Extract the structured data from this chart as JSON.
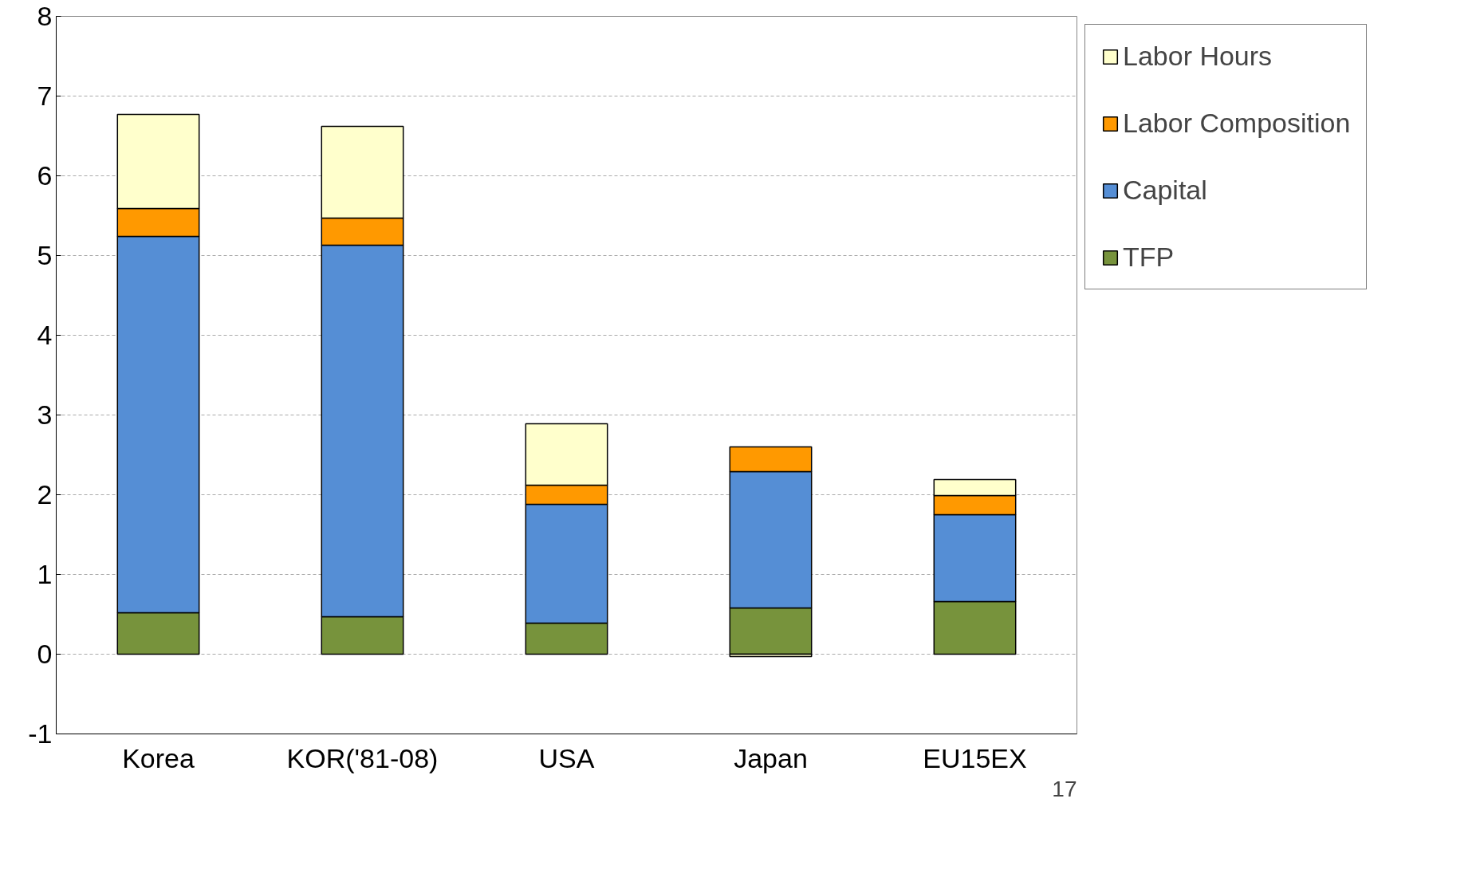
{
  "chart_data": {
    "type": "bar",
    "stacked": true,
    "categories": [
      "Korea",
      "KOR('81-08)",
      "USA",
      "Japan",
      "EU15EX"
    ],
    "series": [
      {
        "name": "TFP",
        "color": "#77933c",
        "values": [
          0.52,
          0.47,
          0.39,
          0.58,
          0.66
        ]
      },
      {
        "name": "Capital",
        "color": "#558ed5",
        "values": [
          4.72,
          4.66,
          1.49,
          1.71,
          1.09
        ]
      },
      {
        "name": "Labor Composition",
        "color": "#ff9900",
        "values": [
          0.35,
          0.34,
          0.24,
          0.31,
          0.24
        ]
      },
      {
        "name": "Labor Hours",
        "color": "#ffffcc",
        "values": [
          1.18,
          1.15,
          0.77,
          -0.03,
          0.2
        ]
      }
    ],
    "ylim": [
      -1,
      8
    ],
    "yticks": [
      -1,
      0,
      1,
      2,
      3,
      4,
      5,
      6,
      7,
      8
    ],
    "grid": "y",
    "legend": "right",
    "annotations": [
      "17"
    ]
  }
}
